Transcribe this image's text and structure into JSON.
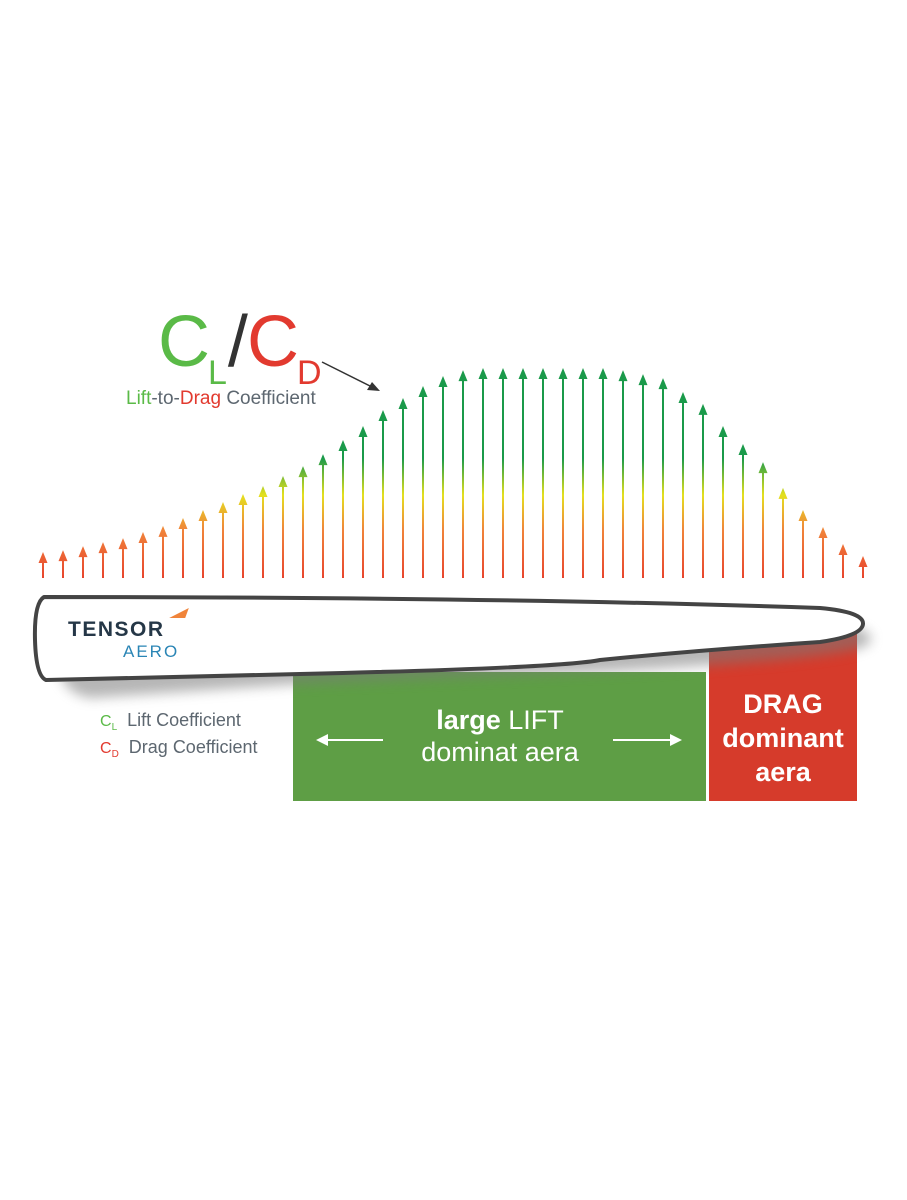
{
  "title": {
    "ratio_lift_letter": "C",
    "ratio_lift_sub": "L",
    "ratio_slash": "/",
    "ratio_drag_letter": "C",
    "ratio_drag_sub": "D",
    "subtitle_lift": "Lift",
    "subtitle_to": "-to-",
    "subtitle_drag": "Drag",
    "subtitle_coefficient": " Coefficient"
  },
  "logo": {
    "top_text": "TENSOR",
    "bottom_text": "AERO"
  },
  "legend": {
    "items": [
      {
        "symbol": "C",
        "sub": "L",
        "label": "Lift Coefficient",
        "color": "#5aba47"
      },
      {
        "symbol": "C",
        "sub": "D",
        "label": "Drag Coefficient",
        "color": "#e23a2f"
      }
    ]
  },
  "zones": {
    "lift": {
      "line1_bold": "large",
      "line1_rest": " LIFT",
      "line2": "dominat aera",
      "color": "#5e9e45"
    },
    "drag": {
      "line1": "DRAG",
      "line2": "dominant",
      "line3": "aera",
      "color": "#d63b2b"
    }
  },
  "colors": {
    "arrow_green": "#1a9a4a",
    "arrow_yellow": "#e4e01e",
    "arrow_orange": "#f0843a",
    "arrow_red": "#e8452e",
    "airfoil_outline": "#444444"
  },
  "distribution": {
    "arrow_count": 42,
    "relative_heights": [
      0.124,
      0.133,
      0.152,
      0.171,
      0.19,
      0.219,
      0.248,
      0.286,
      0.324,
      0.362,
      0.4,
      0.438,
      0.486,
      0.533,
      0.59,
      0.657,
      0.724,
      0.8,
      0.857,
      0.914,
      0.962,
      0.99,
      1.0,
      1.0,
      1.0,
      1.0,
      1.0,
      1.0,
      1.0,
      0.99,
      0.971,
      0.952,
      0.886,
      0.829,
      0.724,
      0.638,
      0.552,
      0.429,
      0.324,
      0.243,
      0.162,
      0.105
    ]
  }
}
